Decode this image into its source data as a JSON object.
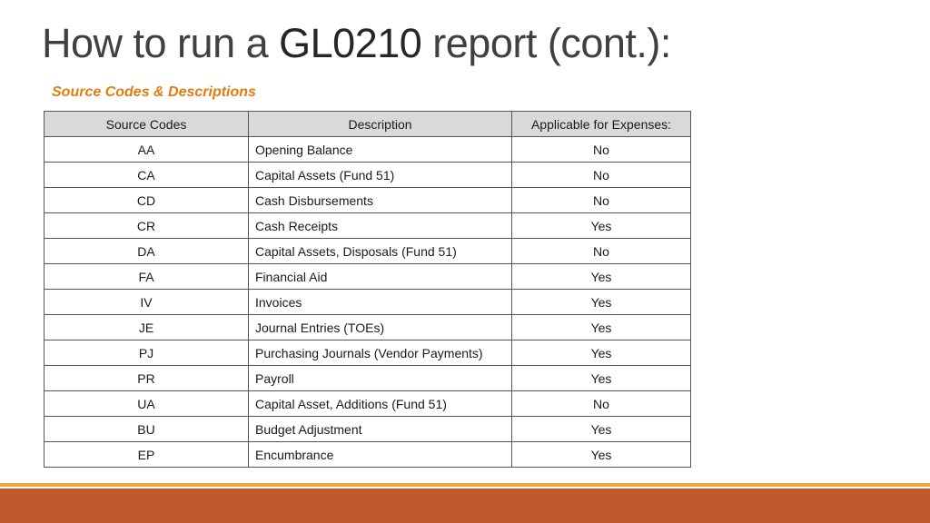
{
  "title": {
    "prefix": "How to run a ",
    "code": "GL0210",
    "suffix": " report (cont.):"
  },
  "subtitle": "Source Codes & Descriptions",
  "table": {
    "headers": [
      "Source Codes",
      "Description",
      "Applicable for Expenses:"
    ],
    "rows": [
      {
        "code": "AA",
        "description": "Opening Balance",
        "applicable": "No"
      },
      {
        "code": "CA",
        "description": "Capital Assets (Fund 51)",
        "applicable": "No"
      },
      {
        "code": "CD",
        "description": "Cash Disbursements",
        "applicable": "No"
      },
      {
        "code": "CR",
        "description": "Cash Receipts",
        "applicable": "Yes"
      },
      {
        "code": "DA",
        "description": "Capital Assets, Disposals (Fund 51)",
        "applicable": "No"
      },
      {
        "code": "FA",
        "description": "Financial Aid",
        "applicable": "Yes"
      },
      {
        "code": "IV",
        "description": "Invoices",
        "applicable": "Yes"
      },
      {
        "code": "JE",
        "description": "Journal Entries (TOEs)",
        "applicable": "Yes"
      },
      {
        "code": "PJ",
        "description": "Purchasing Journals (Vendor Payments)",
        "applicable": "Yes"
      },
      {
        "code": "PR",
        "description": "Payroll",
        "applicable": "Yes"
      },
      {
        "code": "UA",
        "description": "Capital Asset, Additions (Fund 51)",
        "applicable": "No"
      },
      {
        "code": "BU",
        "description": "Budget Adjustment",
        "applicable": "Yes"
      },
      {
        "code": "EP",
        "description": "Encumbrance",
        "applicable": "Yes"
      }
    ]
  },
  "colors": {
    "subtitle": "#e07d10",
    "header_bg": "#d9d9d9",
    "footer_line": "#f2a53a",
    "footer_bar": "#c0582d"
  }
}
